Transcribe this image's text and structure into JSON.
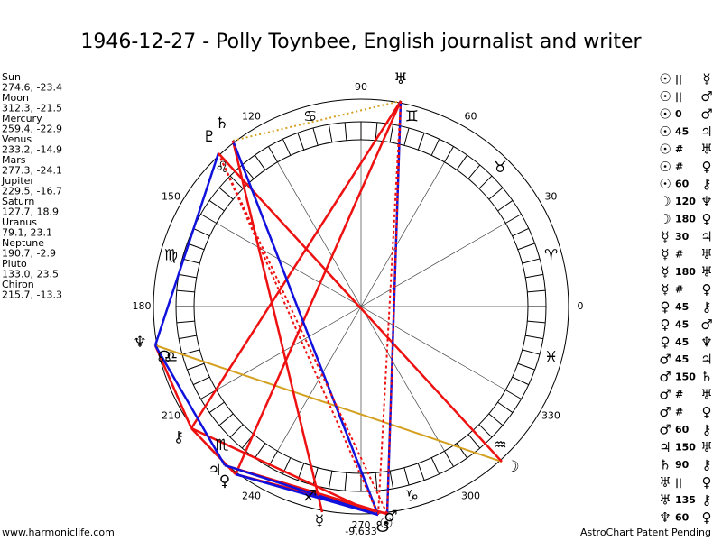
{
  "title": "1946-12-27 - Polly Toynbee, English journalist and writer",
  "planets": [
    {
      "name": "Sun",
      "coords": "274.6, -23.4",
      "glyph": "☉"
    },
    {
      "name": "Moon",
      "coords": "312.3, -21.5",
      "glyph": "☽"
    },
    {
      "name": "Mercury",
      "coords": "259.4, -22.9",
      "glyph": "☿"
    },
    {
      "name": "Venus",
      "coords": "233.2, -14.9",
      "glyph": "♀"
    },
    {
      "name": "Mars",
      "coords": "277.3, -24.1",
      "glyph": "♂"
    },
    {
      "name": "Jupiter",
      "coords": "229.5, -16.7",
      "glyph": "♃"
    },
    {
      "name": "Saturn",
      "coords": "127.7, 18.9",
      "glyph": "♄"
    },
    {
      "name": "Uranus",
      "coords": "79.1, 23.1",
      "glyph": "♅"
    },
    {
      "name": "Neptune",
      "coords": "190.7, -2.9",
      "glyph": "♆"
    },
    {
      "name": "Pluto",
      "coords": "133.0, 23.5",
      "glyph": "♇"
    },
    {
      "name": "Chiron",
      "coords": "215.7, -13.3",
      "glyph": "⚷"
    }
  ],
  "nodes": [
    "☊",
    "☋"
  ],
  "signs": [
    "♈",
    "♉",
    "♊",
    "♋",
    "♌",
    "♍",
    "♎",
    "♏",
    "♐",
    "♑",
    "♒",
    "♓"
  ],
  "degree_labels": [
    "0",
    "30",
    "60",
    "90",
    "120",
    "150",
    "180",
    "210",
    "240",
    "270",
    "300",
    "330"
  ],
  "aspects": [
    [
      "☉",
      "||",
      "☿"
    ],
    [
      "☉",
      "||",
      "♂"
    ],
    [
      "☉",
      "0",
      "♂"
    ],
    [
      "☉",
      "45",
      "♃"
    ],
    [
      "☉",
      "#",
      "♅"
    ],
    [
      "☉",
      "#",
      "♀"
    ],
    [
      "☉",
      "60",
      "⚷"
    ],
    [
      "☽",
      "120",
      "♆"
    ],
    [
      "☽",
      "180",
      "♀"
    ],
    [
      "☿",
      "30",
      "♃"
    ],
    [
      "☿",
      "#",
      "♅"
    ],
    [
      "☿",
      "180",
      "♅"
    ],
    [
      "☿",
      "#",
      "♀"
    ],
    [
      "♀",
      "45",
      "⚷"
    ],
    [
      "♀",
      "45",
      "♂"
    ],
    [
      "♀",
      "45",
      "♆"
    ],
    [
      "♂",
      "45",
      "♃"
    ],
    [
      "♂",
      "150",
      "♄"
    ],
    [
      "♂",
      "#",
      "♅"
    ],
    [
      "♂",
      "#",
      "♀"
    ],
    [
      "♂",
      "60",
      "⚷"
    ],
    [
      "♃",
      "150",
      "♅"
    ],
    [
      "♄",
      "90",
      "⚷"
    ],
    [
      "♅",
      "||",
      "♀"
    ],
    [
      "♅",
      "135",
      "⚷"
    ],
    [
      "♆",
      "60",
      "♀"
    ]
  ],
  "bottom_value": "-9,633",
  "footer_left": "www.harmoniclife.com",
  "footer_right": "AstroChart Patent Pending"
}
